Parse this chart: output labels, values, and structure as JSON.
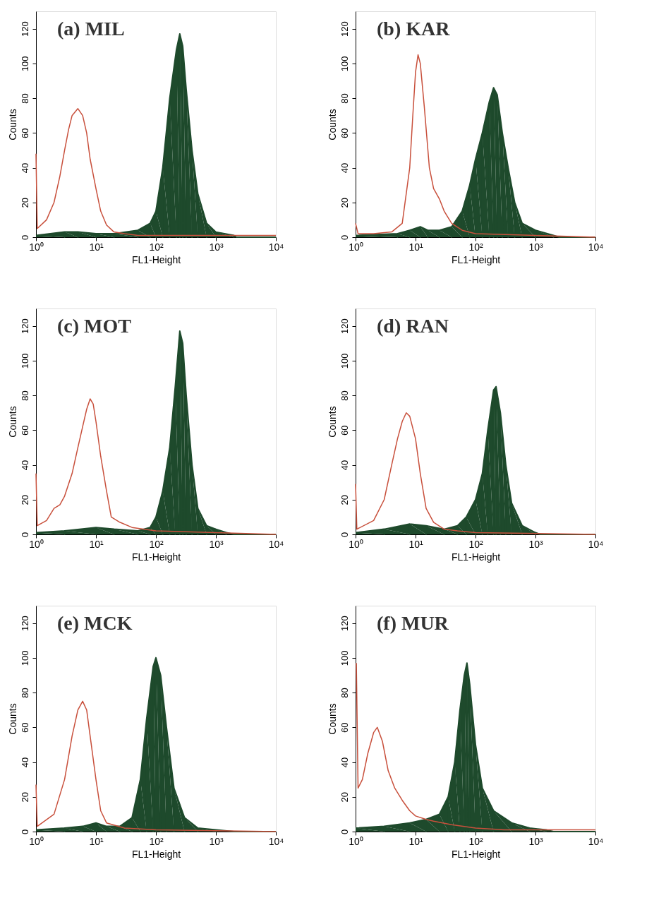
{
  "chart_data": [
    {
      "type": "area",
      "title": "(a)  MIL",
      "xlabel": "FL1-Height",
      "ylabel": "Counts",
      "log": "x",
      "grid": false,
      "xlim": [
        1,
        10000
      ],
      "ylim": [
        0,
        130
      ],
      "xticks": [
        {
          "value": 1,
          "label": "10⁰"
        },
        {
          "value": 10,
          "label": "10¹"
        },
        {
          "value": 100,
          "label": "10²"
        },
        {
          "value": 1000,
          "label": "10³"
        },
        {
          "value": 10000,
          "label": "10⁴"
        }
      ],
      "yticks": [
        0,
        20,
        40,
        60,
        80,
        100,
        120
      ],
      "series": [
        {
          "color": "#1e4a2c",
          "x": [
            1,
            3,
            5,
            10,
            20,
            50,
            80,
            100,
            130,
            170,
            220,
            250,
            280,
            320,
            400,
            500,
            700,
            1000,
            2000,
            2200,
            10000
          ],
          "values": [
            1,
            3,
            3,
            2,
            2,
            4,
            8,
            15,
            40,
            80,
            108,
            117,
            110,
            85,
            50,
            25,
            8,
            3,
            1,
            0,
            0
          ]
        },
        {
          "type": "line",
          "color": "#c8503c",
          "x": [
            1,
            1.05,
            1.5,
            2,
            2.5,
            3,
            3.5,
            4,
            5,
            6,
            7,
            8,
            10,
            12,
            15,
            20,
            30,
            50,
            100,
            1000,
            10000
          ],
          "values": [
            48,
            5,
            10,
            20,
            35,
            50,
            62,
            70,
            74,
            70,
            60,
            45,
            28,
            15,
            7,
            3,
            2,
            1,
            1,
            1,
            1
          ]
        }
      ]
    },
    {
      "type": "area",
      "title": "(b)  KAR",
      "xlabel": "FL1-Height",
      "ylabel": "Counts",
      "log": "x",
      "grid": false,
      "xlim": [
        1,
        10000
      ],
      "ylim": [
        0,
        130
      ],
      "xticks": [
        {
          "value": 1,
          "label": "10⁰"
        },
        {
          "value": 10,
          "label": "10¹"
        },
        {
          "value": 100,
          "label": "10²"
        },
        {
          "value": 1000,
          "label": "10³"
        },
        {
          "value": 10000,
          "label": "10⁴"
        }
      ],
      "yticks": [
        0,
        20,
        40,
        60,
        80,
        100,
        120
      ],
      "series": [
        {
          "color": "#1e4a2c",
          "x": [
            1,
            5,
            8,
            12,
            16,
            25,
            40,
            60,
            80,
            100,
            130,
            170,
            200,
            230,
            280,
            350,
            450,
            600,
            1000,
            2000,
            2500,
            10000
          ],
          "values": [
            1,
            2,
            4,
            6,
            4,
            4,
            6,
            15,
            30,
            45,
            60,
            78,
            86,
            82,
            60,
            40,
            20,
            8,
            4,
            1,
            0,
            0
          ]
        },
        {
          "type": "line",
          "color": "#c8503c",
          "x": [
            1,
            1.1,
            2,
            4,
            6,
            8,
            9,
            10,
            11,
            12,
            14,
            17,
            20,
            25,
            30,
            40,
            60,
            100,
            1000,
            10000
          ],
          "values": [
            8,
            2,
            2,
            3,
            8,
            40,
            70,
            95,
            105,
            100,
            75,
            40,
            28,
            22,
            15,
            8,
            4,
            2,
            1,
            0
          ]
        }
      ]
    },
    {
      "type": "area",
      "title": "(c)  MOT",
      "xlabel": "FL1-Height",
      "ylabel": "Counts",
      "log": "x",
      "grid": false,
      "xlim": [
        1,
        10000
      ],
      "ylim": [
        0,
        130
      ],
      "xticks": [
        {
          "value": 1,
          "label": "10⁰"
        },
        {
          "value": 10,
          "label": "10¹"
        },
        {
          "value": 100,
          "label": "10²"
        },
        {
          "value": 1000,
          "label": "10³"
        },
        {
          "value": 10000,
          "label": "10⁴"
        }
      ],
      "yticks": [
        0,
        20,
        40,
        60,
        80,
        100,
        120
      ],
      "series": [
        {
          "color": "#1e4a2c",
          "x": [
            1,
            3,
            10,
            20,
            50,
            80,
            100,
            130,
            170,
            210,
            250,
            280,
            320,
            400,
            500,
            700,
            1000,
            1500,
            2000,
            10000
          ],
          "values": [
            1,
            2,
            4,
            3,
            2,
            4,
            10,
            25,
            50,
            85,
            117,
            110,
            80,
            40,
            15,
            5,
            3,
            1,
            0,
            0
          ]
        },
        {
          "type": "line",
          "color": "#c8503c",
          "x": [
            1,
            1.05,
            1.5,
            2,
            2.5,
            3,
            4,
            5,
            6,
            7,
            8,
            9,
            10,
            12,
            15,
            18,
            25,
            40,
            100,
            1000,
            10000
          ],
          "values": [
            35,
            5,
            8,
            15,
            17,
            22,
            35,
            50,
            62,
            72,
            78,
            75,
            65,
            45,
            25,
            10,
            7,
            4,
            2,
            1,
            0
          ]
        }
      ]
    },
    {
      "type": "area",
      "title": "(d)  RAN",
      "xlabel": "FL1-Height",
      "ylabel": "Counts",
      "log": "x",
      "grid": false,
      "xlim": [
        1,
        10000
      ],
      "ylim": [
        0,
        130
      ],
      "xticks": [
        {
          "value": 1,
          "label": "10⁰"
        },
        {
          "value": 10,
          "label": "10¹"
        },
        {
          "value": 100,
          "label": "10²"
        },
        {
          "value": 1000,
          "label": "10³"
        },
        {
          "value": 10000,
          "label": "10⁴"
        }
      ],
      "yticks": [
        0,
        20,
        40,
        60,
        80,
        100,
        120
      ],
      "series": [
        {
          "color": "#1e4a2c",
          "x": [
            1,
            3,
            8,
            15,
            30,
            50,
            70,
            100,
            130,
            160,
            200,
            220,
            260,
            320,
            400,
            600,
            1000,
            1200,
            10000
          ],
          "values": [
            1,
            3,
            6,
            5,
            3,
            5,
            10,
            20,
            35,
            60,
            83,
            85,
            70,
            40,
            18,
            5,
            1,
            0,
            0
          ]
        },
        {
          "type": "line",
          "color": "#c8503c",
          "x": [
            1,
            1.05,
            2,
            3,
            4,
            5,
            6,
            7,
            8,
            10,
            12,
            15,
            20,
            30,
            50,
            100,
            10000
          ],
          "values": [
            29,
            3,
            8,
            20,
            40,
            55,
            65,
            70,
            68,
            55,
            35,
            15,
            7,
            3,
            2,
            1,
            0
          ]
        }
      ]
    },
    {
      "type": "area",
      "title": "(e)  MCK",
      "xlabel": "FL1-Height",
      "ylabel": "Counts",
      "log": "x",
      "grid": false,
      "xlim": [
        1,
        10000
      ],
      "ylim": [
        0,
        130
      ],
      "xticks": [
        {
          "value": 1,
          "label": "10⁰"
        },
        {
          "value": 10,
          "label": "10¹"
        },
        {
          "value": 100,
          "label": "10²"
        },
        {
          "value": 1000,
          "label": "10³"
        },
        {
          "value": 10000,
          "label": "10⁴"
        }
      ],
      "yticks": [
        0,
        20,
        40,
        60,
        80,
        100,
        120
      ],
      "series": [
        {
          "color": "#1e4a2c",
          "x": [
            1,
            3,
            6,
            10,
            15,
            25,
            40,
            55,
            70,
            90,
            100,
            120,
            150,
            200,
            300,
            500,
            1000,
            2000,
            10000
          ],
          "values": [
            1,
            2,
            3,
            5,
            3,
            3,
            8,
            30,
            65,
            95,
            100,
            90,
            60,
            25,
            8,
            2,
            1,
            0,
            0
          ]
        },
        {
          "type": "line",
          "color": "#c8503c",
          "x": [
            1,
            1.05,
            2,
            3,
            4,
            5,
            6,
            7,
            8,
            10,
            12,
            15,
            30,
            100,
            10000
          ],
          "values": [
            27,
            3,
            10,
            30,
            55,
            70,
            75,
            70,
            55,
            30,
            12,
            5,
            2,
            1,
            0
          ]
        }
      ]
    },
    {
      "type": "area",
      "title": "(f)  MUR",
      "xlabel": "FL1-Height",
      "ylabel": "Counts",
      "log": "x",
      "grid": false,
      "xlim": [
        1,
        10000
      ],
      "ylim": [
        0,
        130
      ],
      "xticks": [
        {
          "value": 1,
          "label": "10⁰"
        },
        {
          "value": 10,
          "label": "10¹"
        },
        {
          "value": 100,
          "label": "10²"
        },
        {
          "value": 1000,
          "label": "10³"
        },
        {
          "value": 10000,
          "label": "10⁴"
        }
      ],
      "yticks": [
        0,
        20,
        40,
        60,
        80,
        100,
        120
      ],
      "series": [
        {
          "color": "#1e4a2c",
          "x": [
            1,
            3,
            8,
            15,
            25,
            35,
            45,
            55,
            65,
            72,
            80,
            100,
            130,
            200,
            400,
            800,
            1500,
            2000,
            10000
          ],
          "values": [
            2,
            3,
            5,
            7,
            10,
            20,
            40,
            70,
            90,
            97,
            85,
            50,
            25,
            12,
            5,
            2,
            1,
            0,
            0
          ]
        },
        {
          "type": "line",
          "color": "#c8503c",
          "x": [
            1.03,
            1.1,
            1.3,
            1.6,
            2,
            2.3,
            2.8,
            3.5,
            4.5,
            6,
            8,
            10,
            15,
            20,
            40,
            100,
            300,
            1000,
            10000
          ],
          "values": [
            97,
            25,
            30,
            45,
            57,
            60,
            52,
            35,
            25,
            18,
            12,
            9,
            7,
            6,
            4,
            2,
            1,
            1,
            1
          ]
        }
      ]
    }
  ]
}
